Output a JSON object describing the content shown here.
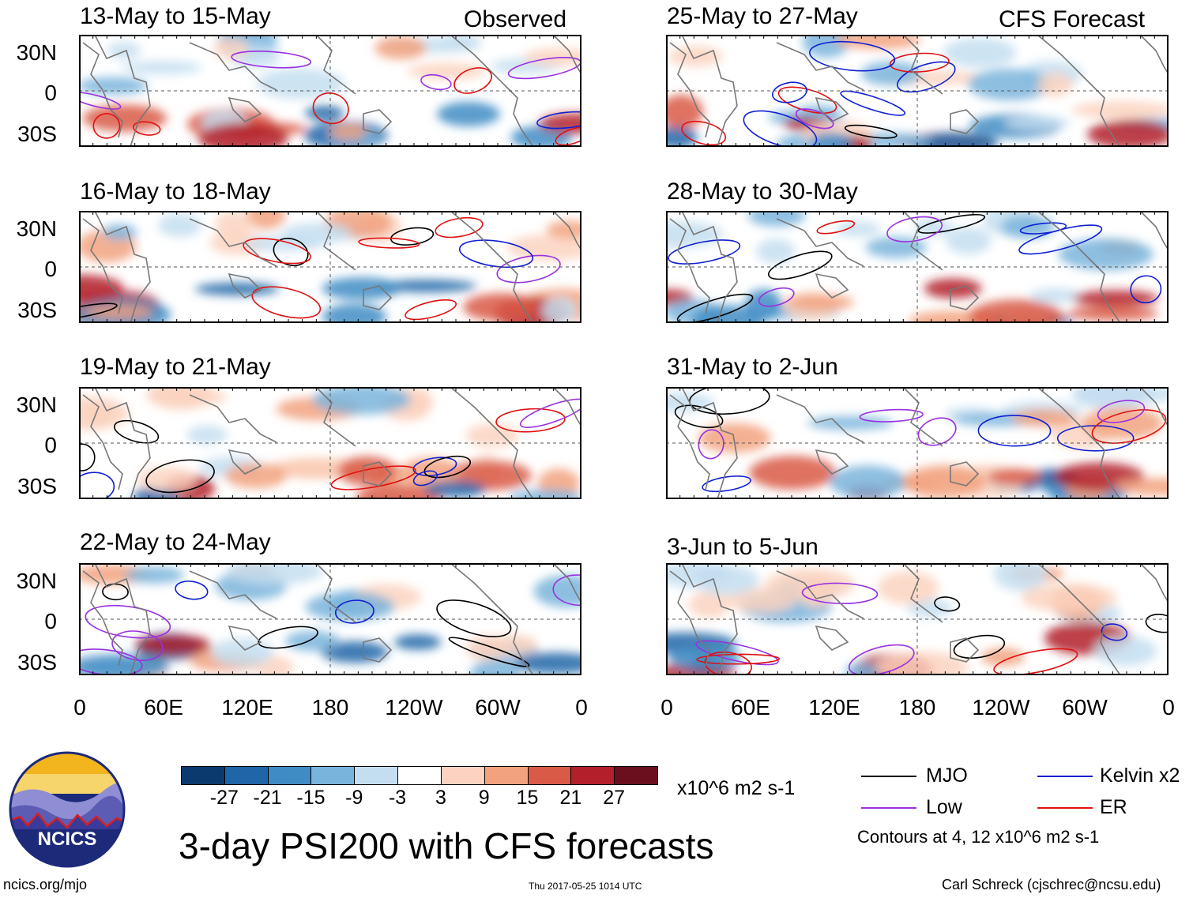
{
  "title": "3-day PSI200 with CFS forecasts",
  "columns": {
    "left": "Observed",
    "right": "CFS Forecast"
  },
  "panels": [
    {
      "label": "13-May to 15-May",
      "source": "observed"
    },
    {
      "label": "16-May to 18-May",
      "source": "observed"
    },
    {
      "label": "19-May to 21-May",
      "source": "observed"
    },
    {
      "label": "22-May to 24-May",
      "source": "observed"
    },
    {
      "label": "25-May to 27-May",
      "source": "forecast"
    },
    {
      "label": "28-May to 30-May",
      "source": "forecast"
    },
    {
      "label": "31-May to 2-Jun",
      "source": "forecast"
    },
    {
      "label": "3-Jun to 5-Jun",
      "source": "forecast"
    }
  ],
  "lat_labels": [
    "30N",
    "0",
    "30S"
  ],
  "lon_labels": [
    "0",
    "60E",
    "120E",
    "180",
    "120W",
    "60W",
    "0"
  ],
  "colorbar": {
    "labels": [
      "-27",
      "-21",
      "-15",
      "-9",
      "-3",
      "3",
      "9",
      "15",
      "21",
      "27"
    ],
    "colors": [
      "#0b3a6e",
      "#1f66a8",
      "#3f8cc4",
      "#79b4dc",
      "#c4def0",
      "#ffffff",
      "#fbd3c0",
      "#f2a27f",
      "#d95a47",
      "#b31f2a",
      "#6b0f1e"
    ],
    "units": "x10^6 m2 s-1"
  },
  "legend": {
    "items": [
      {
        "label": "MJO",
        "color": "#000000"
      },
      {
        "label": "Kelvin x2",
        "color": "#1020d0"
      },
      {
        "label": "Low",
        "color": "#9a30e0"
      },
      {
        "label": "ER",
        "color": "#e01010"
      }
    ],
    "note": "Contours at 4, 12 x10^6 m2 s-1"
  },
  "logo": {
    "text": "NCICS"
  },
  "footer": {
    "site": "ncics.org/mjo",
    "timestamp": "Thu 2017-05-25 1014 UTC",
    "author": "Carl Schreck (cjschrec@ncsu.edu)"
  }
}
